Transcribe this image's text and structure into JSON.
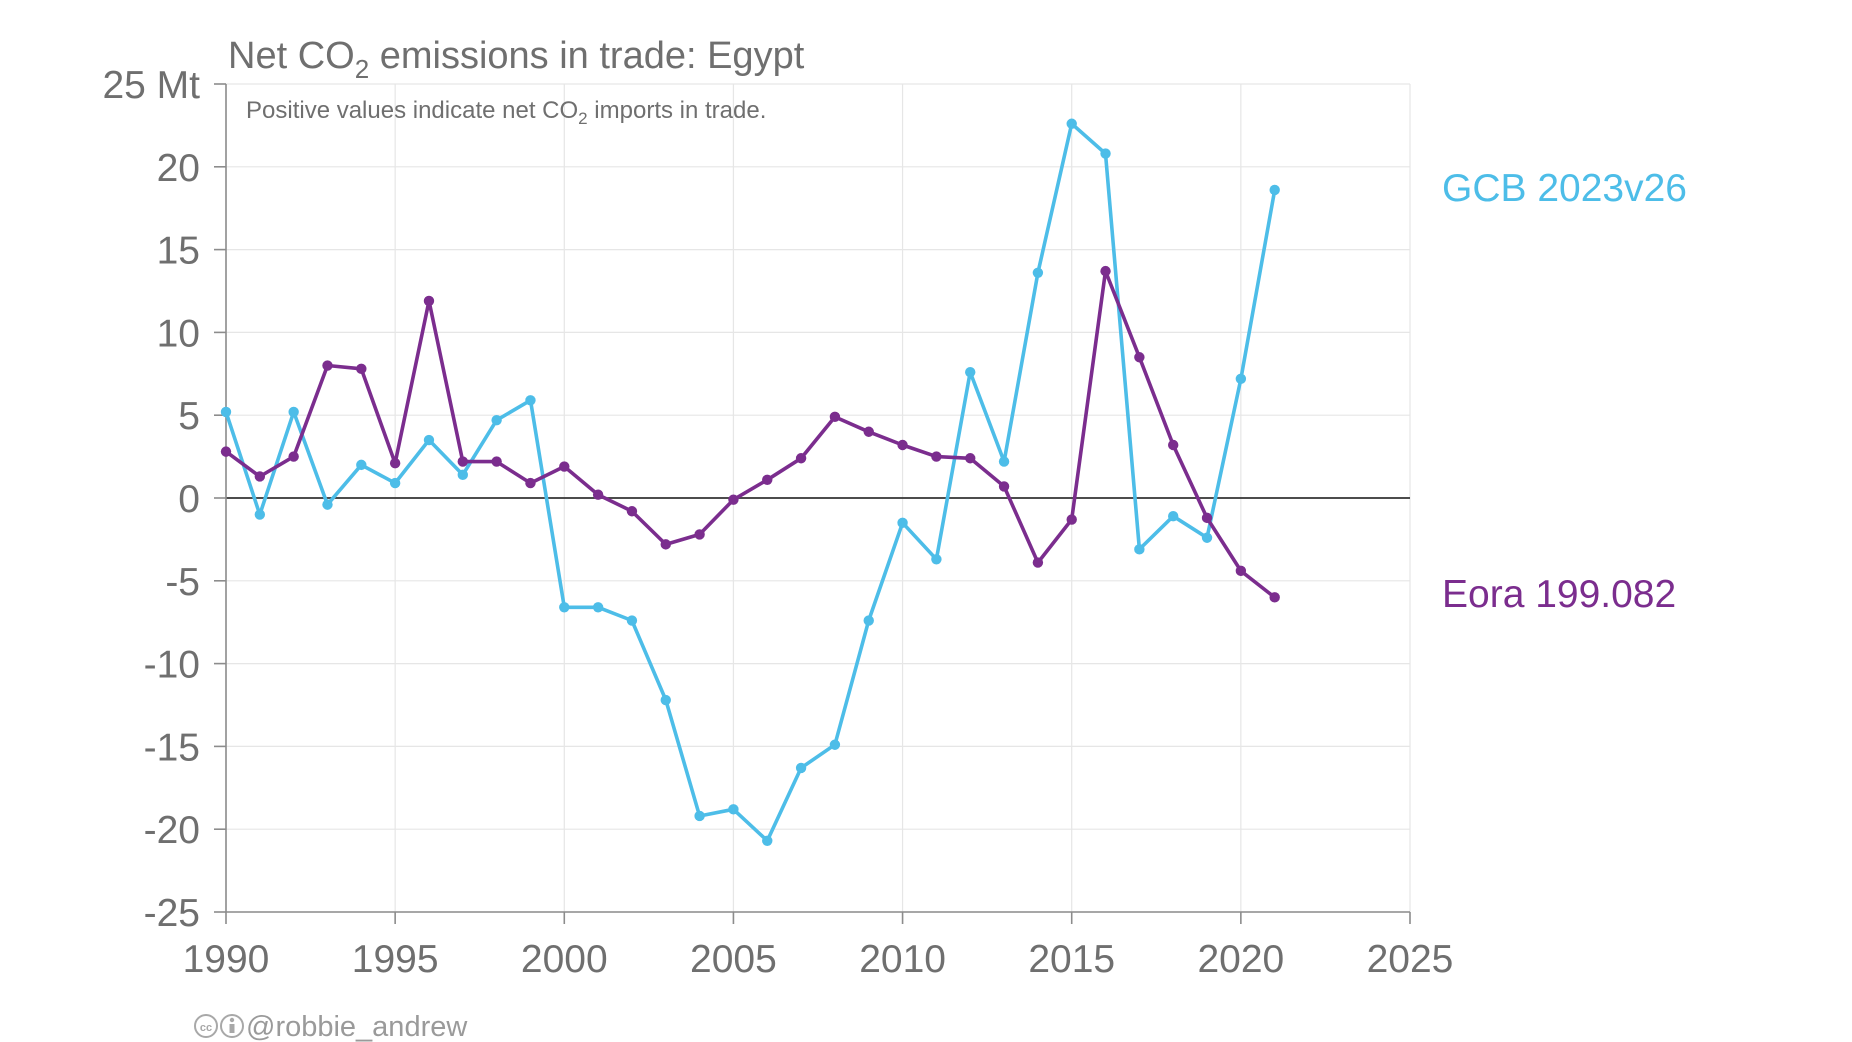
{
  "chart_data": {
    "type": "line",
    "title": "Net CO",
    "title_sub": "2",
    "title_rest": " emissions in trade: Egypt",
    "subtitle": "Positive values indicate net CO",
    "subtitle_sub": "2",
    "subtitle_rest": " imports in trade.",
    "y_unit": "Mt",
    "xlim": [
      1990,
      2025
    ],
    "ylim": [
      -25,
      25
    ],
    "x_ticks": [
      1990,
      1995,
      2000,
      2005,
      2010,
      2015,
      2020,
      2025
    ],
    "y_ticks": [
      -25,
      -20,
      -15,
      -10,
      -5,
      0,
      5,
      10,
      15,
      20,
      25
    ],
    "y_tick_labels": [
      "-25",
      "-20",
      "-15",
      "-10",
      "-5",
      "0",
      "5",
      "10",
      "15",
      "20",
      "25 Mt"
    ],
    "grid": true,
    "legend": "inline labels at right",
    "series": [
      {
        "name": "GCB 2023v26",
        "color": "#4dbde8",
        "x": [
          1990,
          1991,
          1992,
          1993,
          1994,
          1995,
          1996,
          1997,
          1998,
          1999,
          2000,
          2001,
          2002,
          2003,
          2004,
          2005,
          2006,
          2007,
          2008,
          2009,
          2010,
          2011,
          2012,
          2013,
          2014,
          2015,
          2016,
          2017,
          2018,
          2019,
          2020,
          2021
        ],
        "y": [
          5.2,
          -1.0,
          5.2,
          -0.4,
          2.0,
          0.9,
          3.5,
          1.4,
          4.7,
          5.9,
          -6.6,
          -6.6,
          -7.4,
          -12.2,
          -19.2,
          -18.8,
          -20.7,
          -16.3,
          -14.9,
          -7.4,
          -1.5,
          -3.7,
          7.6,
          2.2,
          13.6,
          22.6,
          20.8,
          -3.1,
          -1.1,
          -2.4,
          7.2,
          18.6
        ]
      },
      {
        "name": "Eora 199.082",
        "color": "#7b2d8e",
        "x": [
          1990,
          1991,
          1992,
          1993,
          1994,
          1995,
          1996,
          1997,
          1998,
          1999,
          2000,
          2001,
          2002,
          2003,
          2004,
          2005,
          2006,
          2007,
          2008,
          2009,
          2010,
          2011,
          2012,
          2013,
          2014,
          2015,
          2016,
          2017,
          2018,
          2019,
          2020,
          2021
        ],
        "y": [
          2.8,
          1.3,
          2.5,
          8.0,
          7.8,
          2.1,
          11.9,
          2.2,
          2.2,
          0.9,
          1.9,
          0.2,
          -0.8,
          -2.8,
          -2.2,
          -0.1,
          1.1,
          2.4,
          4.9,
          4.0,
          3.2,
          2.5,
          2.4,
          0.7,
          -3.9,
          -1.3,
          13.7,
          8.5,
          3.2,
          -1.2,
          -4.4,
          -6.0
        ]
      }
    ]
  },
  "credit": "@robbie_andrew",
  "icons": [
    "creative-commons-icon",
    "attribution-icon"
  ]
}
